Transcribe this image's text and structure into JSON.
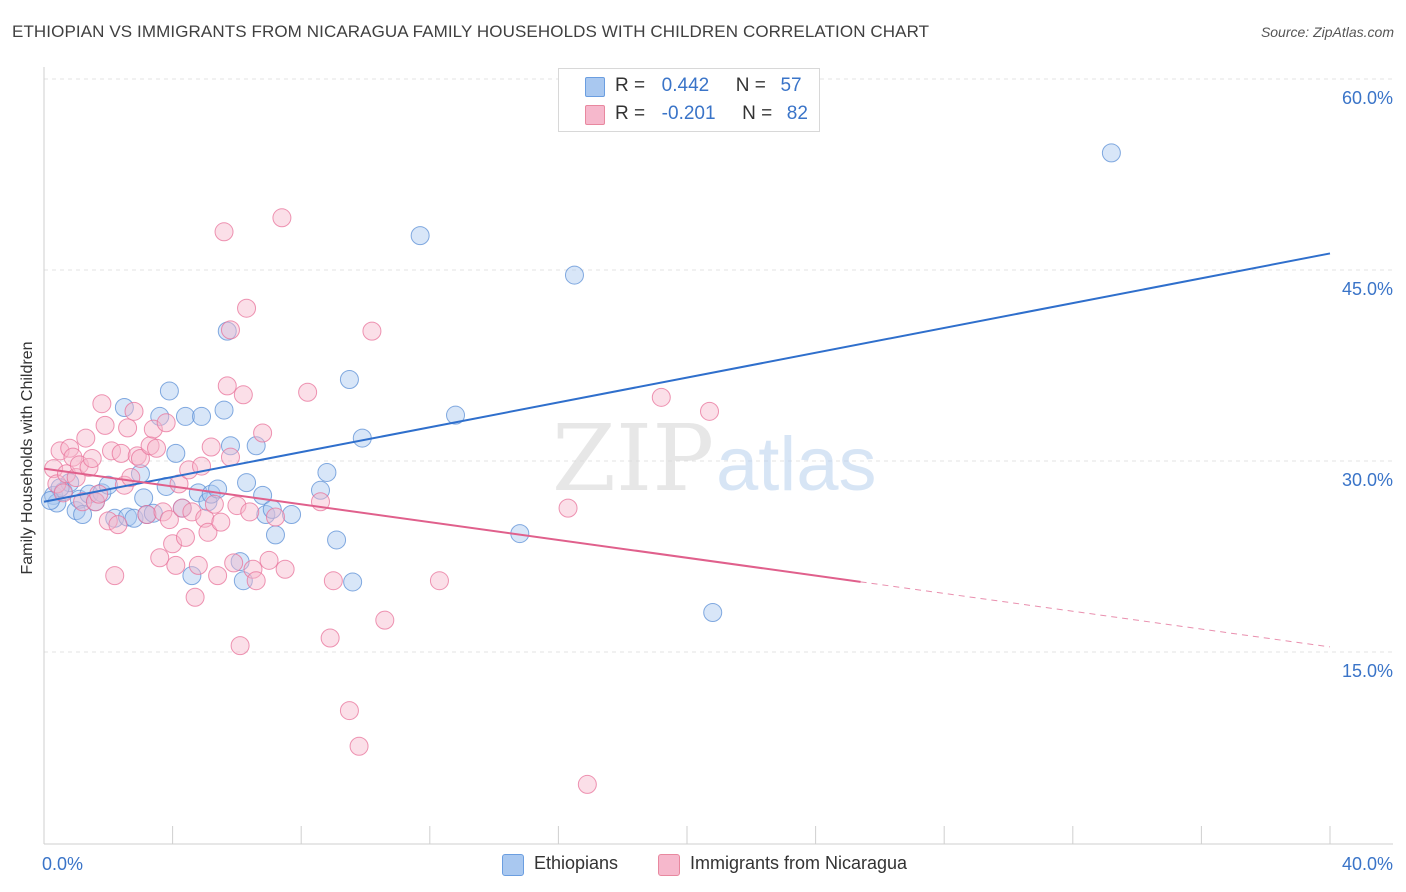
{
  "header": {
    "title": "ETHIOPIAN VS IMMIGRANTS FROM NICARAGUA FAMILY HOUSEHOLDS WITH CHILDREN CORRELATION CHART",
    "source": "Source: ZipAtlas.com"
  },
  "watermark": {
    "part1": "ZIP",
    "part2": "atlas"
  },
  "legend_top": {
    "r_label": "R =",
    "n_label": "N =",
    "rows": [
      {
        "r": "0.442",
        "n": "57",
        "color": "#a9c8f0"
      },
      {
        "r": "-0.201",
        "n": "82",
        "color": "#f6b8cc"
      }
    ]
  },
  "legend_bottom": {
    "items": [
      {
        "label": "Ethiopians",
        "color": "#a9c8f0"
      },
      {
        "label": "Immigrants from Nicaragua",
        "color": "#f6b8cc"
      }
    ]
  },
  "chart_data": {
    "type": "scatter",
    "title": "ETHIOPIAN VS IMMIGRANTS FROM NICARAGUA FAMILY HOUSEHOLDS WITH CHILDREN CORRELATION CHART",
    "ylabel": "Family Households with Children",
    "xlabel": "",
    "xlim": [
      0,
      40
    ],
    "ylim": [
      0,
      61
    ],
    "x_tick_labels": [
      {
        "value": 0,
        "label": "0.0%"
      },
      {
        "value": 40,
        "label": "40.0%"
      }
    ],
    "x_minor_ticks": [
      0,
      4,
      8,
      12,
      16,
      20,
      24,
      28,
      32,
      36,
      40
    ],
    "y_ticks": [
      {
        "value": 15,
        "label": "15.0%"
      },
      {
        "value": 30,
        "label": "30.0%"
      },
      {
        "value": 45,
        "label": "45.0%"
      },
      {
        "value": 60,
        "label": "60.0%"
      }
    ],
    "grid": true,
    "legend_position": "top-center",
    "series": [
      {
        "name": "Ethiopians",
        "color": "#5b8fd6",
        "fill": "#a9c8f0",
        "trend": {
          "x0": 0,
          "y0": 26.8,
          "x1": 40,
          "y1": 46.3,
          "dashed_from": null
        },
        "points": [
          [
            0.3,
            27.3
          ],
          [
            0.4,
            26.7
          ],
          [
            0.6,
            27.6
          ],
          [
            0.8,
            28.3
          ],
          [
            1.0,
            26.1
          ],
          [
            1.1,
            27.0
          ],
          [
            1.2,
            25.8
          ],
          [
            1.4,
            27.4
          ],
          [
            1.6,
            26.8
          ],
          [
            1.8,
            27.5
          ],
          [
            2.0,
            28.1
          ],
          [
            2.2,
            25.5
          ],
          [
            2.5,
            34.2
          ],
          [
            2.6,
            25.6
          ],
          [
            2.8,
            25.5
          ],
          [
            3.0,
            29.0
          ],
          [
            3.1,
            27.1
          ],
          [
            3.2,
            25.8
          ],
          [
            3.4,
            25.9
          ],
          [
            3.6,
            33.5
          ],
          [
            3.8,
            28.0
          ],
          [
            3.9,
            35.5
          ],
          [
            4.1,
            30.6
          ],
          [
            4.3,
            26.3
          ],
          [
            4.4,
            33.5
          ],
          [
            4.6,
            21.0
          ],
          [
            4.8,
            27.5
          ],
          [
            4.9,
            33.5
          ],
          [
            5.1,
            26.8
          ],
          [
            5.2,
            27.4
          ],
          [
            5.4,
            27.8
          ],
          [
            5.6,
            34.0
          ],
          [
            5.7,
            40.2
          ],
          [
            5.8,
            31.2
          ],
          [
            6.1,
            22.1
          ],
          [
            6.2,
            20.6
          ],
          [
            6.3,
            28.3
          ],
          [
            6.6,
            31.2
          ],
          [
            6.8,
            27.3
          ],
          [
            6.9,
            25.8
          ],
          [
            7.1,
            26.2
          ],
          [
            7.2,
            24.2
          ],
          [
            7.7,
            25.8
          ],
          [
            8.6,
            27.7
          ],
          [
            8.8,
            29.1
          ],
          [
            9.1,
            23.8
          ],
          [
            9.5,
            36.4
          ],
          [
            9.6,
            20.5
          ],
          [
            9.9,
            31.8
          ],
          [
            11.7,
            47.7
          ],
          [
            12.8,
            33.6
          ],
          [
            14.8,
            24.3
          ],
          [
            16.5,
            44.6
          ],
          [
            20.8,
            18.1
          ],
          [
            33.2,
            54.2
          ],
          [
            0.5,
            27.9
          ],
          [
            0.2,
            26.9
          ]
        ]
      },
      {
        "name": "Immigrants from Nicaragua",
        "color": "#e8729a",
        "fill": "#f6b8cc",
        "trend": {
          "x0": 0,
          "y0": 29.4,
          "x1": 40,
          "y1": 15.4,
          "dashed_from": 25.4
        },
        "points": [
          [
            0.3,
            29.4
          ],
          [
            0.4,
            28.2
          ],
          [
            0.5,
            30.8
          ],
          [
            0.6,
            27.5
          ],
          [
            0.7,
            29.0
          ],
          [
            0.8,
            31.0
          ],
          [
            0.9,
            30.3
          ],
          [
            1.0,
            28.7
          ],
          [
            1.1,
            29.7
          ],
          [
            1.2,
            26.8
          ],
          [
            1.3,
            31.8
          ],
          [
            1.4,
            29.5
          ],
          [
            1.5,
            30.2
          ],
          [
            1.6,
            26.8
          ],
          [
            1.7,
            27.4
          ],
          [
            1.8,
            34.5
          ],
          [
            1.9,
            32.8
          ],
          [
            2.0,
            25.3
          ],
          [
            2.1,
            30.8
          ],
          [
            2.2,
            21.0
          ],
          [
            2.3,
            25.0
          ],
          [
            2.4,
            30.6
          ],
          [
            2.5,
            28.1
          ],
          [
            2.6,
            32.6
          ],
          [
            2.7,
            28.7
          ],
          [
            2.8,
            33.9
          ],
          [
            2.9,
            30.4
          ],
          [
            3.0,
            30.2
          ],
          [
            3.2,
            25.8
          ],
          [
            3.3,
            31.2
          ],
          [
            3.4,
            32.5
          ],
          [
            3.5,
            31.0
          ],
          [
            3.6,
            22.4
          ],
          [
            3.7,
            26.0
          ],
          [
            3.8,
            33.0
          ],
          [
            3.9,
            25.4
          ],
          [
            4.0,
            23.5
          ],
          [
            4.1,
            21.8
          ],
          [
            4.2,
            28.2
          ],
          [
            4.3,
            26.3
          ],
          [
            4.4,
            24.0
          ],
          [
            4.5,
            29.3
          ],
          [
            4.6,
            26.0
          ],
          [
            4.7,
            19.3
          ],
          [
            4.8,
            21.8
          ],
          [
            4.9,
            29.6
          ],
          [
            5.0,
            25.5
          ],
          [
            5.1,
            24.4
          ],
          [
            5.2,
            31.1
          ],
          [
            5.3,
            26.6
          ],
          [
            5.4,
            21.0
          ],
          [
            5.5,
            25.2
          ],
          [
            5.6,
            48.0
          ],
          [
            5.7,
            35.9
          ],
          [
            5.8,
            30.3
          ],
          [
            5.9,
            22.0
          ],
          [
            6.0,
            26.5
          ],
          [
            6.1,
            15.5
          ],
          [
            6.2,
            35.2
          ],
          [
            6.3,
            42.0
          ],
          [
            6.4,
            26.0
          ],
          [
            6.5,
            21.5
          ],
          [
            6.6,
            20.6
          ],
          [
            6.8,
            32.2
          ],
          [
            7.0,
            22.2
          ],
          [
            7.2,
            25.6
          ],
          [
            7.4,
            49.1
          ],
          [
            7.5,
            21.5
          ],
          [
            8.2,
            35.4
          ],
          [
            8.6,
            26.8
          ],
          [
            8.9,
            16.1
          ],
          [
            9.0,
            20.6
          ],
          [
            9.5,
            10.4
          ],
          [
            9.8,
            7.6
          ],
          [
            10.2,
            40.2
          ],
          [
            10.6,
            17.5
          ],
          [
            12.3,
            20.6
          ],
          [
            16.3,
            26.3
          ],
          [
            16.9,
            4.6
          ],
          [
            19.2,
            35.0
          ],
          [
            20.7,
            33.9
          ],
          [
            5.8,
            40.3
          ]
        ]
      }
    ]
  }
}
